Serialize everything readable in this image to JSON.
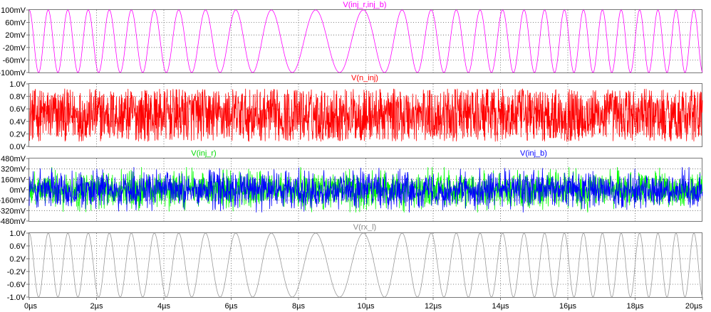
{
  "chart_data": {
    "type": "line",
    "x_axis": {
      "ticks": [
        "0µs",
        "2µs",
        "4µs",
        "6µs",
        "8µs",
        "10µs",
        "12µs",
        "14µs",
        "16µs",
        "18µs",
        "20µs"
      ],
      "range": [
        0,
        20
      ],
      "grid": true
    },
    "panes": [
      {
        "traces": [
          {
            "name": "V(inj_r,inj_b)",
            "color": "#ff00ff",
            "label_position": "center",
            "shape": "sine",
            "amplitude": 0.1,
            "offset": 0,
            "frequency_profile_mhz": {
              "x": [
                0,
                4,
                8,
                9,
                10,
                12,
                16,
                20
              ],
              "f": [
                1.8,
                1.4,
                0.72,
                0.7,
                0.72,
                1.3,
                1.75,
                1.9
              ]
            }
          }
        ],
        "y_ticks": [
          "100mV",
          "60mV",
          "20mV",
          "-20mV",
          "-60mV",
          "-100mV"
        ],
        "ylim": [
          -0.1,
          0.1
        ]
      },
      {
        "traces": [
          {
            "name": "V(n_inj)",
            "color": "#ff0000",
            "label_position": "center",
            "shape": "uniform noise",
            "range": [
              0,
              1
            ]
          }
        ],
        "y_ticks": [
          "1.0V",
          "0.8V",
          "0.6V",
          "0.4V",
          "0.2V",
          "0.0V"
        ],
        "ylim": [
          0,
          1.0
        ]
      },
      {
        "traces": [
          {
            "name": "V(inj_r)",
            "color": "#00ff00",
            "label_position": "left",
            "shape": "noise",
            "range": [
              -0.3,
              0.3
            ]
          },
          {
            "name": "V(inj_b)",
            "color": "#0000ff",
            "label_position": "right",
            "shape": "noise",
            "range": [
              -0.3,
              0.3
            ]
          }
        ],
        "y_ticks": [
          "480mV",
          "320mV",
          "160mV",
          "0mV",
          "-160mV",
          "-320mV",
          "-480mV"
        ],
        "ylim": [
          -0.48,
          0.48
        ]
      },
      {
        "traces": [
          {
            "name": "V(rx_l)",
            "color": "#999999",
            "label_position": "center",
            "shape": "sine",
            "amplitude": 1.0,
            "offset": 0,
            "frequency_profile_mhz": {
              "x": [
                0,
                4,
                8,
                9,
                10,
                12,
                16,
                20
              ],
              "f": [
                1.8,
                1.4,
                0.72,
                0.7,
                0.72,
                1.3,
                1.75,
                1.9
              ]
            }
          }
        ],
        "y_ticks": [
          "1.0V",
          "0.6V",
          "0.2V",
          "-0.2V",
          "-0.6V",
          "-1.0V"
        ],
        "ylim": [
          -1.0,
          1.0
        ]
      }
    ]
  }
}
